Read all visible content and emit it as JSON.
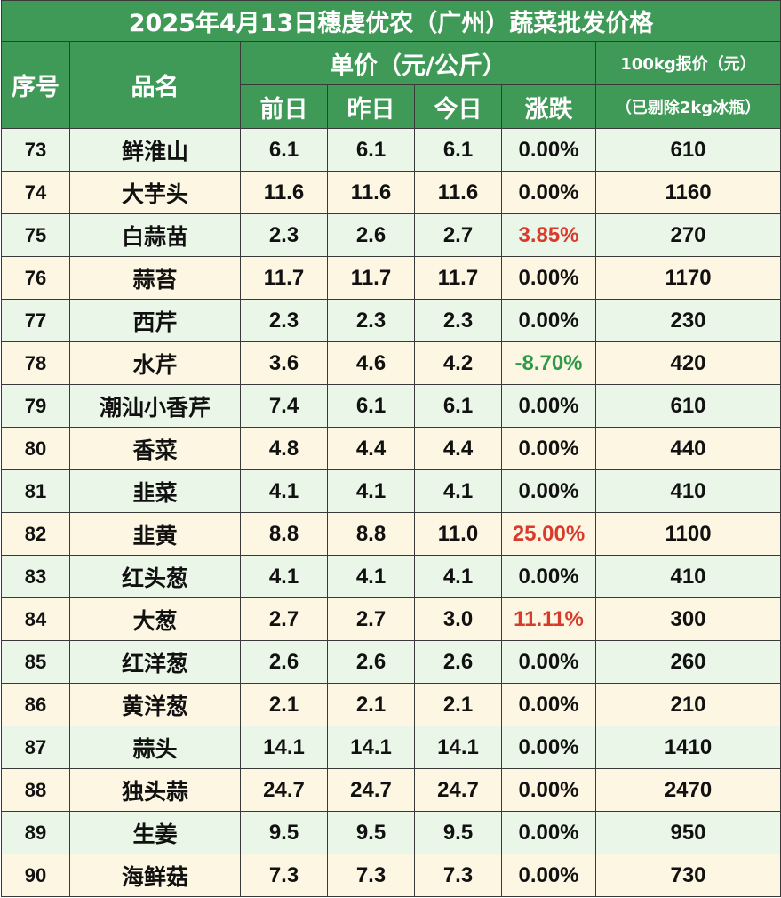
{
  "title": "2025年4月13日穗虔优农（广州）蔬菜批发价格",
  "headers": {
    "no": "序号",
    "name": "品名",
    "unit_price": "单价（元/公斤）",
    "prev_day": "前日",
    "yesterday": "昨日",
    "today": "今日",
    "change": "涨跌",
    "quote_100kg": "100kg报价（元）",
    "quote_note": "（已剔除2kg冰瓶）"
  },
  "colors": {
    "header_green": "#3e9a56",
    "row_green": "#eaf6e8",
    "row_cream": "#fdf6e3",
    "up_red": "#d93a2b",
    "down_green": "#2e9a47"
  },
  "rows": [
    {
      "no": "73",
      "name": "鲜淮山",
      "prev": "6.1",
      "yday": "6.1",
      "today": "6.1",
      "change": "0.00%",
      "quote": "610",
      "trend": "flat"
    },
    {
      "no": "74",
      "name": "大芋头",
      "prev": "11.6",
      "yday": "11.6",
      "today": "11.6",
      "change": "0.00%",
      "quote": "1160",
      "trend": "flat"
    },
    {
      "no": "75",
      "name": "白蒜苗",
      "prev": "2.3",
      "yday": "2.6",
      "today": "2.7",
      "change": "3.85%",
      "quote": "270",
      "trend": "up"
    },
    {
      "no": "76",
      "name": "蒜苔",
      "prev": "11.7",
      "yday": "11.7",
      "today": "11.7",
      "change": "0.00%",
      "quote": "1170",
      "trend": "flat"
    },
    {
      "no": "77",
      "name": "西芹",
      "prev": "2.3",
      "yday": "2.3",
      "today": "2.3",
      "change": "0.00%",
      "quote": "230",
      "trend": "flat"
    },
    {
      "no": "78",
      "name": "水芹",
      "prev": "3.6",
      "yday": "4.6",
      "today": "4.2",
      "change": "-8.70%",
      "quote": "420",
      "trend": "down"
    },
    {
      "no": "79",
      "name": "潮汕小香芹",
      "prev": "7.4",
      "yday": "6.1",
      "today": "6.1",
      "change": "0.00%",
      "quote": "610",
      "trend": "flat"
    },
    {
      "no": "80",
      "name": "香菜",
      "prev": "4.8",
      "yday": "4.4",
      "today": "4.4",
      "change": "0.00%",
      "quote": "440",
      "trend": "flat"
    },
    {
      "no": "81",
      "name": "韭菜",
      "prev": "4.1",
      "yday": "4.1",
      "today": "4.1",
      "change": "0.00%",
      "quote": "410",
      "trend": "flat"
    },
    {
      "no": "82",
      "name": "韭黄",
      "prev": "8.8",
      "yday": "8.8",
      "today": "11.0",
      "change": "25.00%",
      "quote": "1100",
      "trend": "up"
    },
    {
      "no": "83",
      "name": "红头葱",
      "prev": "4.1",
      "yday": "4.1",
      "today": "4.1",
      "change": "0.00%",
      "quote": "410",
      "trend": "flat"
    },
    {
      "no": "84",
      "name": "大葱",
      "prev": "2.7",
      "yday": "2.7",
      "today": "3.0",
      "change": "11.11%",
      "quote": "300",
      "trend": "up"
    },
    {
      "no": "85",
      "name": "红洋葱",
      "prev": "2.6",
      "yday": "2.6",
      "today": "2.6",
      "change": "0.00%",
      "quote": "260",
      "trend": "flat"
    },
    {
      "no": "86",
      "name": "黄洋葱",
      "prev": "2.1",
      "yday": "2.1",
      "today": "2.1",
      "change": "0.00%",
      "quote": "210",
      "trend": "flat"
    },
    {
      "no": "87",
      "name": "蒜头",
      "prev": "14.1",
      "yday": "14.1",
      "today": "14.1",
      "change": "0.00%",
      "quote": "1410",
      "trend": "flat"
    },
    {
      "no": "88",
      "name": "独头蒜",
      "prev": "24.7",
      "yday": "24.7",
      "today": "24.7",
      "change": "0.00%",
      "quote": "2470",
      "trend": "flat"
    },
    {
      "no": "89",
      "name": "生姜",
      "prev": "9.5",
      "yday": "9.5",
      "today": "9.5",
      "change": "0.00%",
      "quote": "950",
      "trend": "flat"
    },
    {
      "no": "90",
      "name": "海鲜菇",
      "prev": "7.3",
      "yday": "7.3",
      "today": "7.3",
      "change": "0.00%",
      "quote": "730",
      "trend": "flat"
    }
  ]
}
